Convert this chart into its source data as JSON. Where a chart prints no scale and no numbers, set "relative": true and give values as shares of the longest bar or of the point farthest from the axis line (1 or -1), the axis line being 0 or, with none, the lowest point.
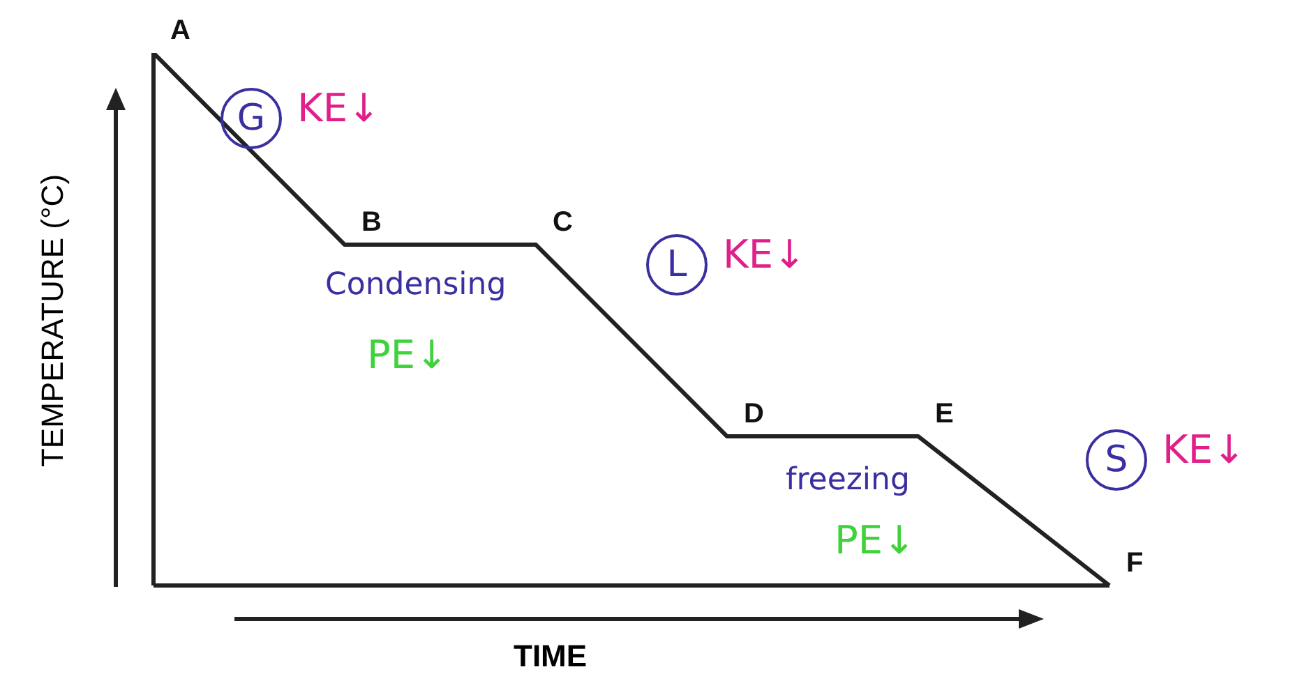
{
  "chart_data": {
    "type": "line",
    "relative": true,
    "xlabel": "TIME",
    "ylabel": "TEMPERATURE (°C)",
    "categories": [
      "A",
      "B",
      "C",
      "D",
      "E",
      "F"
    ],
    "series": [
      {
        "color": "#222222",
        "values": [
          1,
          0.64,
          0.64,
          0.28,
          0.28,
          0
        ]
      }
    ],
    "marker": "none",
    "line_style": "solid",
    "grid": false,
    "legend": false,
    "annotations": [
      "G",
      "KE↓",
      "Condensing",
      "PE↓",
      "L",
      "KE↓",
      "freezing",
      "PE↓",
      "S",
      "KE↓"
    ]
  }
}
